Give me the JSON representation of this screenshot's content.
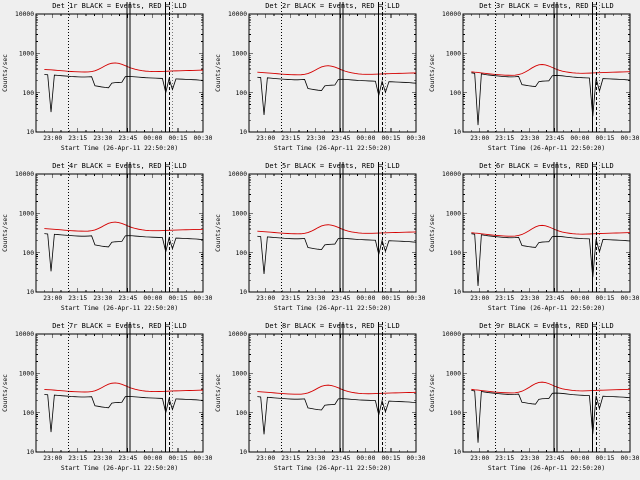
{
  "window": {
    "background": "#efefef"
  },
  "chart_data": {
    "type": "line",
    "layout": {
      "rows": 3,
      "cols": 3
    },
    "yscale": "log",
    "ylim": [
      10,
      10000
    ],
    "xlabel": "Start Time (26-Apr-11 22:50:20)",
    "ylabel": "Counts/sec",
    "xtick_labels": [
      "23:00",
      "23:15",
      "23:30",
      "23:45",
      "00:00",
      "00:15",
      "00:30"
    ],
    "xtick_pos": [
      0.1,
      0.25,
      0.4,
      0.55,
      0.7,
      0.85,
      1.0
    ],
    "yticks": [
      10,
      100,
      1000,
      10000
    ],
    "ytick_labels": [
      "10",
      "100",
      "1000",
      "10000"
    ],
    "legend": {
      "black": "Events",
      "red": "LLD"
    },
    "colors": {
      "events": "#000000",
      "lld": "#d40000"
    },
    "vlines": [
      {
        "x": 0.195,
        "style": "dotted"
      },
      {
        "x": 0.545,
        "style": "solid"
      },
      {
        "x": 0.562,
        "style": "solid"
      },
      {
        "x": 0.775,
        "style": "solid"
      },
      {
        "x": 0.8,
        "style": "dashed"
      },
      {
        "x": 0.815,
        "style": "dotted"
      }
    ],
    "x": [
      0.05,
      0.07,
      0.09,
      0.11,
      0.131,
      0.151,
      0.171,
      0.191,
      0.211,
      0.232,
      0.252,
      0.272,
      0.292,
      0.312,
      0.333,
      0.353,
      0.373,
      0.393,
      0.413,
      0.434,
      0.454,
      0.474,
      0.494,
      0.514,
      0.535,
      0.555,
      0.575,
      0.595,
      0.615,
      0.636,
      0.656,
      0.676,
      0.696,
      0.716,
      0.737,
      0.757,
      0.777,
      0.797,
      0.817,
      0.838,
      0.858,
      0.878,
      0.898,
      0.918,
      0.939,
      0.959,
      0.979,
      1.0
    ],
    "profiles": {
      "mid": {
        "black": [
          290,
          285,
          32,
          280,
          275,
          270,
          266,
          262,
          258,
          255,
          252,
          250,
          250,
          252,
          255,
          150,
          145,
          140,
          136,
          133,
          175,
          180,
          182,
          184,
          255,
          258,
          256,
          252,
          248,
          244,
          240,
          238,
          236,
          234,
          232,
          230,
          100,
          228,
          120,
          224,
          222,
          220,
          218,
          216,
          214,
          212,
          208,
          205
        ],
        "red": [
          390,
          385,
          380,
          374,
          368,
          362,
          356,
          350,
          345,
          341,
          338,
          336,
          335,
          336,
          345,
          360,
          390,
          430,
          480,
          530,
          560,
          570,
          556,
          526,
          486,
          446,
          415,
          392,
          375,
          362,
          353,
          348,
          345,
          344,
          345,
          347,
          350,
          353,
          356,
          358,
          360,
          362,
          364,
          366,
          368,
          370,
          372,
          374
        ]
      },
      "right": {
        "black": [
          320,
          310,
          15,
          300,
          290,
          282,
          276,
          270,
          265,
          260,
          256,
          253,
          252,
          254,
          258,
          160,
          155,
          150,
          146,
          143,
          190,
          196,
          198,
          200,
          270,
          274,
          272,
          268,
          262,
          256,
          250,
          246,
          243,
          240,
          238,
          236,
          25,
          232,
          110,
          228,
          226,
          224,
          222,
          220,
          218,
          216,
          212,
          208
        ],
        "red": [
          340,
          332,
          326,
          318,
          310,
          303,
          297,
          291,
          286,
          282,
          279,
          277,
          276,
          278,
          288,
          305,
          335,
          375,
          425,
          475,
          510,
          520,
          506,
          476,
          436,
          400,
          372,
          352,
          338,
          328,
          320,
          315,
          312,
          311,
          312,
          314,
          317,
          320,
          323,
          325,
          327,
          329,
          331,
          333,
          335,
          337,
          339,
          341
        ]
      }
    },
    "charts": [
      {
        "det": "1r",
        "title": "Det 1r BLACK = Events, RED = LLD",
        "profile": "mid",
        "scale": 1.0
      },
      {
        "det": "2r",
        "title": "Det 2r BLACK = Events, RED = LLD",
        "profile": "mid",
        "scale": 0.85
      },
      {
        "det": "3r",
        "title": "Det 3r BLACK = Events, RED = LLD",
        "profile": "right",
        "scale": 1.0
      },
      {
        "det": "4r",
        "title": "Det 4r BLACK = Events, RED = LLD",
        "profile": "mid",
        "scale": 1.05
      },
      {
        "det": "5r",
        "title": "Det 5r BLACK = Events, RED = LLD",
        "profile": "mid",
        "scale": 0.9
      },
      {
        "det": "6r",
        "title": "Det 6r BLACK = Events, RED = LLD",
        "profile": "right",
        "scale": 0.95
      },
      {
        "det": "7r",
        "title": "Det 7r BLACK = Events, RED = LLD",
        "profile": "mid",
        "scale": 1.0
      },
      {
        "det": "8r",
        "title": "Det 8r BLACK = Events, RED = LLD",
        "profile": "mid",
        "scale": 0.88
      },
      {
        "det": "9r",
        "title": "Det 9r BLACK = Events, RED = LLD",
        "profile": "right",
        "scale": 1.15
      }
    ]
  }
}
